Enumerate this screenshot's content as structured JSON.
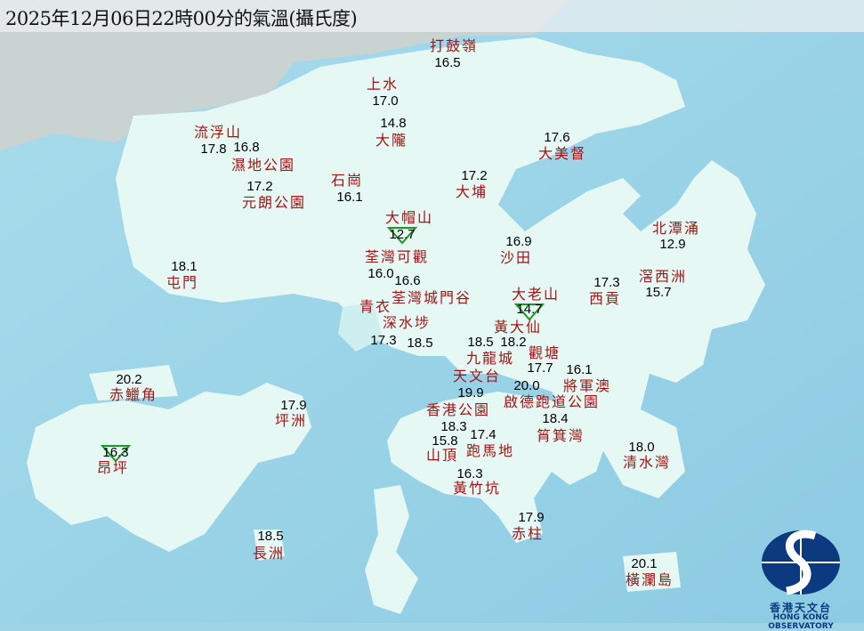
{
  "title": "2025年12月06日22時00分的氣溫(攝氏度)",
  "colors": {
    "sea": "#9fd3e6",
    "land": "#e6f8f4",
    "station_name": "#a01414",
    "temperature": "#000000",
    "min_marker": "#1a9a1a",
    "logo": "#0b3a80"
  },
  "stations": [
    {
      "name": "打鼓嶺",
      "temp": "16.5"
    },
    {
      "name": "上水",
      "temp": "17.0"
    },
    {
      "name": "大隴",
      "temp": "14.8"
    },
    {
      "name": "流浮山",
      "temp": "17.8"
    },
    {
      "name": "濕地公園",
      "temp": "16.8"
    },
    {
      "name": "元朗公園",
      "temp": "17.2"
    },
    {
      "name": "石崗",
      "temp": "16.1"
    },
    {
      "name": "大埔",
      "temp": "17.2"
    },
    {
      "name": "大美督",
      "temp": "17.6"
    },
    {
      "name": "大帽山",
      "temp": "12.7",
      "min_marker": true
    },
    {
      "name": "北潭涌",
      "temp": "12.9"
    },
    {
      "name": "沙田",
      "temp": "16.9"
    },
    {
      "name": "荃灣可觀",
      "temp": "16.0"
    },
    {
      "name": "屯門",
      "temp": "18.1"
    },
    {
      "name": "西貢",
      "temp": "17.3"
    },
    {
      "name": "滘西洲",
      "temp": "15.7"
    },
    {
      "name": "荃灣城門谷",
      "temp": "16.6"
    },
    {
      "name": "大老山",
      "temp": "14.7",
      "min_marker": true
    },
    {
      "name": "青衣",
      "temp": "17.3"
    },
    {
      "name": "深水埗",
      "temp": "18.5"
    },
    {
      "name": "黃大仙",
      "temp": "18.2"
    },
    {
      "name": "九龍城",
      "temp": "18.5"
    },
    {
      "name": "觀塘",
      "temp": "17.7"
    },
    {
      "name": "將軍澳",
      "temp": "16.1"
    },
    {
      "name": "天文台",
      "temp": "19.9"
    },
    {
      "name": "啟德跑道公園",
      "temp": "20.0"
    },
    {
      "name": "香港公園",
      "temp": "18.3"
    },
    {
      "name": "筲箕灣",
      "temp": "18.4"
    },
    {
      "name": "跑馬地",
      "temp": "17.4"
    },
    {
      "name": "山頂",
      "temp": "15.8"
    },
    {
      "name": "黃竹坑",
      "temp": "16.3"
    },
    {
      "name": "赤鱲角",
      "temp": "20.2"
    },
    {
      "name": "坪洲",
      "temp": "17.9"
    },
    {
      "name": "昂坪",
      "temp": "16.3",
      "min_marker": true
    },
    {
      "name": "清水灣",
      "temp": "18.0"
    },
    {
      "name": "赤柱",
      "temp": "17.9"
    },
    {
      "name": "長洲",
      "temp": "18.5"
    },
    {
      "name": "橫瀾島",
      "temp": "20.1"
    }
  ],
  "logo": {
    "chinese": "香港天文台",
    "english": "HONG KONG OBSERVATORY"
  }
}
